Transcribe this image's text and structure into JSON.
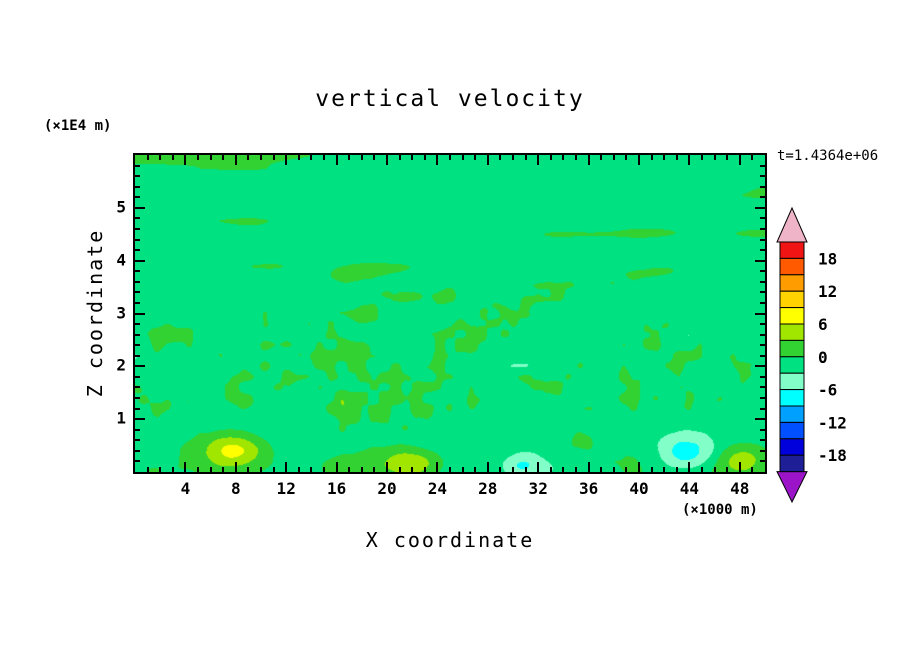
{
  "chart_data": {
    "type": "heatmap",
    "title": "vertical velocity",
    "xlabel": "X coordinate",
    "ylabel": "Z coordinate",
    "x_units_note": "(×1000 m)",
    "y_units_note": "(×1E4 m)",
    "time_annotation": "t=1.4364e+06",
    "x_range": [
      0,
      50
    ],
    "z_range": [
      0,
      6
    ],
    "x_major_ticks": [
      4,
      8,
      12,
      16,
      20,
      24,
      28,
      32,
      36,
      40,
      44,
      48
    ],
    "x_minor_step": 1,
    "z_major_ticks": [
      1,
      2,
      3,
      4,
      5
    ],
    "z_minor_step": 0.2,
    "contour_interval": 3,
    "levels": [
      -21,
      -18,
      -15,
      -12,
      -9,
      -6,
      -3,
      0,
      3,
      6,
      9,
      12,
      15,
      18,
      21
    ],
    "band_colors_bottom_to_top": [
      "#9c14c8",
      "#1e1e96",
      "#0000dc",
      "#0050ff",
      "#00a0ff",
      "#00ffff",
      "#82ffc8",
      "#00e182",
      "#32d232",
      "#a0e600",
      "#ffff00",
      "#ffd200",
      "#ff9c00",
      "#ff5a00",
      "#f01414",
      "#f0b4c8"
    ],
    "colorbar_labels": [
      18,
      12,
      6,
      0,
      -6,
      -12,
      -18
    ],
    "field": {
      "description": "Turbulent vertical-velocity field; most of the domain lies in the -3..0 band (spring green) with irregular positive patches in the 0..3 band (green). Fine-grained speckle for z between about 1 and 3 (x1E4 m), elongated horizontal streaks above z of about 3.5, larger blobs below z of about 1.",
      "visible_maxima": [
        {
          "x_1000m": 8,
          "z_1E4m": 0.45,
          "approx_w": 8
        },
        {
          "x_1000m": 22,
          "z_1E4m": 0.2,
          "approx_w": 6
        },
        {
          "x_1000m": 48,
          "z_1E4m": 0.25,
          "approx_w": 5
        }
      ],
      "visible_minima": [
        {
          "x_1000m": 44,
          "z_1E4m": 0.35,
          "approx_w": -7
        },
        {
          "x_1000m": 31,
          "z_1E4m": 0.15,
          "approx_w": -5
        }
      ]
    }
  }
}
